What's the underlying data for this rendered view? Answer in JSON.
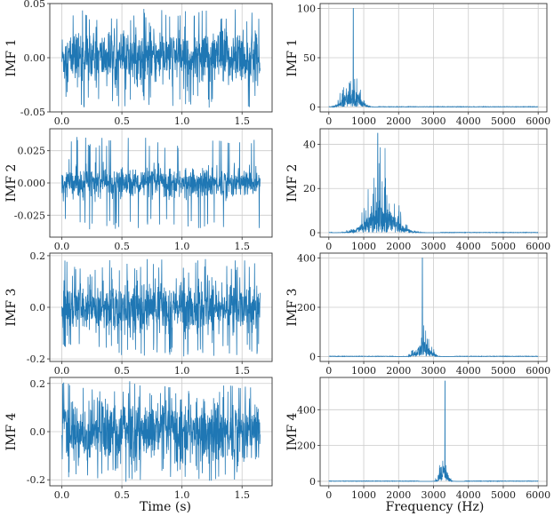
{
  "colors": {
    "series": "#1f77b4",
    "grid": "#cccccc",
    "frame": "#333333"
  },
  "figure": {
    "xlabel_left": "Time (s)",
    "xlabel_right": "Frequency (Hz)"
  },
  "chart_data": [
    {
      "panel": "time-imf-1",
      "type": "line",
      "ylabel": "IMF 1",
      "xlabel": "",
      "xlim": [
        -0.1,
        1.75
      ],
      "ylim": [
        -0.05,
        0.05
      ],
      "xticks": [
        {
          "v": 0,
          "label": "0.0"
        },
        {
          "v": 0.5,
          "label": "0.5"
        },
        {
          "v": 1,
          "label": "1.0"
        },
        {
          "v": 1.5,
          "label": "1.5"
        }
      ],
      "yticks": [
        {
          "v": -0.05,
          "label": "-0.05"
        },
        {
          "v": 0,
          "label": "0.00"
        },
        {
          "v": 0.05,
          "label": "0.05"
        }
      ],
      "series": [
        {
          "duration": 1.65,
          "amplitude_envelope": 0.046,
          "typical_amplitude": 0.022,
          "kind": "noise"
        }
      ],
      "grid": true
    },
    {
      "panel": "spec-imf-1",
      "type": "line",
      "ylabel": "IMF 1",
      "xlabel": "",
      "xlim": [
        -250,
        6250
      ],
      "ylim": [
        -5,
        105
      ],
      "xticks": [
        {
          "v": 0,
          "label": "0"
        },
        {
          "v": 1000,
          "label": "1000"
        },
        {
          "v": 2000,
          "label": "2000"
        },
        {
          "v": 3000,
          "label": "3000"
        },
        {
          "v": 4000,
          "label": "4000"
        },
        {
          "v": 5000,
          "label": "5000"
        },
        {
          "v": 6000,
          "label": "6000"
        }
      ],
      "yticks": [
        {
          "v": 0,
          "label": "0"
        },
        {
          "v": 50,
          "label": "50"
        },
        {
          "v": 100,
          "label": "100"
        }
      ],
      "series": [
        {
          "peak_freq": 700,
          "peak_value": 100,
          "center": 650,
          "spread": 200,
          "body": 20,
          "lo": 50,
          "hi": 1400,
          "kind": "spectrum"
        }
      ],
      "grid": true
    },
    {
      "panel": "time-imf-2",
      "type": "line",
      "ylabel": "IMF 2",
      "xlabel": "",
      "xlim": [
        -0.1,
        1.75
      ],
      "ylim": [
        -0.042,
        0.042
      ],
      "xticks": [
        {
          "v": 0,
          "label": "0.0"
        },
        {
          "v": 0.5,
          "label": "0.5"
        },
        {
          "v": 1,
          "label": "1.0"
        },
        {
          "v": 1.5,
          "label": "1.5"
        }
      ],
      "yticks": [
        {
          "v": -0.025,
          "label": "-0.025"
        },
        {
          "v": 0,
          "label": "0.000"
        },
        {
          "v": 0.025,
          "label": "0.025"
        }
      ],
      "series": [
        {
          "duration": 1.65,
          "amplitude_envelope": 0.036,
          "typical_amplitude": 0.01,
          "kind": "noise"
        }
      ],
      "grid": true
    },
    {
      "panel": "spec-imf-2",
      "type": "line",
      "ylabel": "IMF 2",
      "xlabel": "",
      "xlim": [
        -250,
        6250
      ],
      "ylim": [
        -2,
        47
      ],
      "xticks": [
        {
          "v": 0,
          "label": "0"
        },
        {
          "v": 1000,
          "label": "1000"
        },
        {
          "v": 2000,
          "label": "2000"
        },
        {
          "v": 3000,
          "label": "3000"
        },
        {
          "v": 4000,
          "label": "4000"
        },
        {
          "v": 5000,
          "label": "5000"
        },
        {
          "v": 6000,
          "label": "6000"
        }
      ],
      "yticks": [
        {
          "v": 0,
          "label": "0"
        },
        {
          "v": 20,
          "label": "20"
        },
        {
          "v": 40,
          "label": "40"
        }
      ],
      "series": [
        {
          "peak_freq": 1400,
          "peak_value": 45,
          "center": 1500,
          "spread": 380,
          "body": 12,
          "lo": 100,
          "hi": 3200,
          "kind": "spectrum"
        }
      ],
      "grid": true
    },
    {
      "panel": "time-imf-3",
      "type": "line",
      "ylabel": "IMF 3",
      "xlabel": "",
      "xlim": [
        -0.1,
        1.75
      ],
      "ylim": [
        -0.21,
        0.21
      ],
      "xticks": [
        {
          "v": 0,
          "label": "0.0"
        },
        {
          "v": 0.5,
          "label": "0.5"
        },
        {
          "v": 1,
          "label": "1.0"
        },
        {
          "v": 1.5,
          "label": "1.5"
        }
      ],
      "yticks": [
        {
          "v": -0.2,
          "label": "-0.2"
        },
        {
          "v": 0,
          "label": "0.0"
        },
        {
          "v": 0.2,
          "label": "0.2"
        }
      ],
      "series": [
        {
          "duration": 1.65,
          "amplitude_envelope": 0.19,
          "typical_amplitude": 0.09,
          "kind": "noise"
        }
      ],
      "grid": true
    },
    {
      "panel": "spec-imf-3",
      "type": "line",
      "ylabel": "IMF 3",
      "xlabel": "",
      "xlim": [
        -250,
        6250
      ],
      "ylim": [
        -20,
        420
      ],
      "xticks": [
        {
          "v": 0,
          "label": "0"
        },
        {
          "v": 1000,
          "label": "1000"
        },
        {
          "v": 2000,
          "label": "2000"
        },
        {
          "v": 3000,
          "label": "3000"
        },
        {
          "v": 4000,
          "label": "4000"
        },
        {
          "v": 5000,
          "label": "5000"
        },
        {
          "v": 6000,
          "label": "6000"
        }
      ],
      "yticks": [
        {
          "v": 0,
          "label": "0"
        },
        {
          "v": 200,
          "label": "200"
        },
        {
          "v": 400,
          "label": "400"
        }
      ],
      "series": [
        {
          "peak_freq": 2680,
          "peak_value": 400,
          "center": 2700,
          "spread": 170,
          "body": 60,
          "lo": 1900,
          "hi": 3600,
          "kind": "spectrum"
        }
      ],
      "grid": true
    },
    {
      "panel": "time-imf-4",
      "type": "line",
      "ylabel": "IMF 4",
      "xlabel": "Time (s)",
      "xlim": [
        -0.1,
        1.75
      ],
      "ylim": [
        -0.225,
        0.225
      ],
      "xticks": [
        {
          "v": 0,
          "label": "0.0"
        },
        {
          "v": 0.5,
          "label": "0.5"
        },
        {
          "v": 1,
          "label": "1.0"
        },
        {
          "v": 1.5,
          "label": "1.5"
        }
      ],
      "yticks": [
        {
          "v": -0.2,
          "label": "-0.2"
        },
        {
          "v": 0,
          "label": "0.0"
        },
        {
          "v": 0.2,
          "label": "0.2"
        }
      ],
      "series": [
        {
          "duration": 1.65,
          "amplitude_envelope": 0.21,
          "typical_amplitude": 0.12,
          "kind": "noise"
        }
      ],
      "grid": true
    },
    {
      "panel": "spec-imf-4",
      "type": "line",
      "ylabel": "IMF 4",
      "xlabel": "Frequency (Hz)",
      "xlim": [
        -250,
        6250
      ],
      "ylim": [
        -25,
        580
      ],
      "xticks": [
        {
          "v": 0,
          "label": "0"
        },
        {
          "v": 1000,
          "label": "1000"
        },
        {
          "v": 2000,
          "label": "2000"
        },
        {
          "v": 3000,
          "label": "3000"
        },
        {
          "v": 4000,
          "label": "4000"
        },
        {
          "v": 5000,
          "label": "5000"
        },
        {
          "v": 6000,
          "label": "6000"
        }
      ],
      "yticks": [
        {
          "v": 0,
          "label": "0"
        },
        {
          "v": 200,
          "label": "200"
        },
        {
          "v": 400,
          "label": "400"
        }
      ],
      "series": [
        {
          "peak_freq": 3330,
          "peak_value": 560,
          "center": 3300,
          "spread": 90,
          "body": 90,
          "lo": 2600,
          "hi": 3900,
          "kind": "spectrum"
        }
      ],
      "grid": true
    }
  ]
}
